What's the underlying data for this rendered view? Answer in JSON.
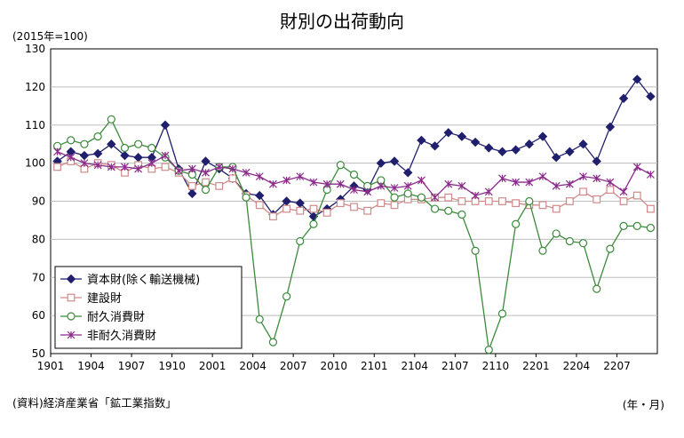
{
  "chart_data": {
    "type": "line",
    "title": "財別の出荷動向",
    "unit_label": "(2015年=100)",
    "source": "(資料)経済産業省「鉱工業指数」",
    "x_unit_label": "(年・月)",
    "ylim": [
      50,
      130
    ],
    "yticks": [
      50,
      60,
      70,
      80,
      90,
      100,
      110,
      120,
      130
    ],
    "xticks": [
      "1901",
      "1904",
      "1907",
      "1910",
      "2001",
      "2004",
      "2007",
      "2010",
      "2101",
      "2104",
      "2107",
      "2110",
      "2201",
      "2204",
      "2207"
    ],
    "grid": true,
    "legend_position": "bottom-left",
    "series": [
      {
        "name": "資本財(除く輸送機械)",
        "color": "#1f1f6e",
        "marker": "diamond",
        "values": [
          100.5,
          103.0,
          102.0,
          102.5,
          105.0,
          102.0,
          101.5,
          101.5,
          110.0,
          98.5,
          92.0,
          100.5,
          98.5,
          96.0,
          92.0,
          91.5,
          86.5,
          90.0,
          89.5,
          86.0,
          88.0,
          90.5,
          94.0,
          93.0,
          100.0,
          100.5,
          97.5,
          106.0,
          104.5,
          108.0,
          107.0,
          105.5,
          104.0,
          103.0,
          103.5,
          105.0,
          107.0,
          101.5,
          103.0,
          105.0,
          100.5,
          109.5,
          117.0,
          122.0,
          117.5
        ]
      },
      {
        "name": "建設財",
        "color": "#d08a8a",
        "marker": "square",
        "values": [
          99.0,
          100.5,
          98.5,
          100.0,
          99.5,
          97.5,
          99.5,
          98.5,
          99.0,
          97.5,
          94.0,
          95.0,
          94.0,
          96.0,
          91.5,
          89.0,
          86.0,
          88.0,
          87.5,
          88.0,
          87.0,
          89.5,
          88.5,
          87.5,
          89.5,
          89.0,
          90.5,
          90.5,
          91.0,
          91.0,
          90.0,
          90.0,
          90.0,
          90.0,
          89.5,
          89.0,
          89.0,
          88.0,
          90.0,
          92.5,
          90.5,
          93.0,
          90.0,
          91.5,
          88.0
        ]
      },
      {
        "name": "耐久消費財",
        "color": "#3a8a3a",
        "marker": "circle",
        "values": [
          104.5,
          106.0,
          105.0,
          107.0,
          111.5,
          104.0,
          105.0,
          104.0,
          101.5,
          98.0,
          97.0,
          93.0,
          99.0,
          99.0,
          91.0,
          59.0,
          53.0,
          65.0,
          79.5,
          84.0,
          93.0,
          99.5,
          97.0,
          94.0,
          95.5,
          91.0,
          92.0,
          91.0,
          88.0,
          87.5,
          86.5,
          77.0,
          51.0,
          60.5,
          84.0,
          90.0,
          77.0,
          81.5,
          79.5,
          79.0,
          67.0,
          77.5,
          83.5,
          83.5,
          83.0
        ]
      },
      {
        "name": "非耐久消費財",
        "color": "#8a2a8a",
        "marker": "x",
        "values": [
          103.0,
          101.5,
          100.0,
          99.5,
          99.0,
          99.0,
          98.5,
          100.0,
          102.0,
          98.0,
          98.5,
          97.5,
          99.0,
          98.5,
          97.5,
          96.5,
          94.5,
          95.5,
          96.5,
          95.0,
          94.5,
          94.5,
          93.0,
          92.5,
          94.0,
          93.5,
          94.0,
          95.5,
          91.0,
          94.5,
          94.0,
          91.5,
          92.5,
          96.0,
          95.0,
          95.0,
          96.5,
          94.0,
          94.5,
          96.5,
          96.0,
          95.0,
          92.5,
          99.0,
          97.0
        ]
      }
    ]
  }
}
